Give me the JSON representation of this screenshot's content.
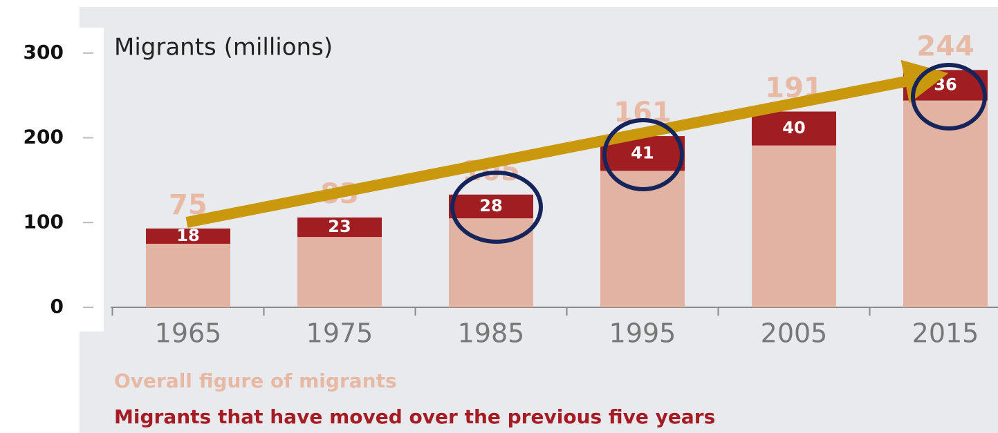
{
  "chart_data": {
    "type": "bar",
    "stacked": true,
    "title": "Migrants (millions)",
    "categories": [
      "1965",
      "1975",
      "1985",
      "1995",
      "2005",
      "2015"
    ],
    "series": [
      {
        "name": "Overall figure of migrants",
        "color": "#e2b3a2",
        "values": [
          75,
          83,
          105,
          161,
          191,
          244
        ]
      },
      {
        "name": "Migrants that have moved over the previous five years",
        "color": "#a01e22",
        "values": [
          18,
          23,
          28,
          41,
          40,
          36
        ]
      }
    ],
    "ylim": [
      0,
      330
    ],
    "yticks": [
      0,
      100,
      200,
      300
    ]
  }
}
